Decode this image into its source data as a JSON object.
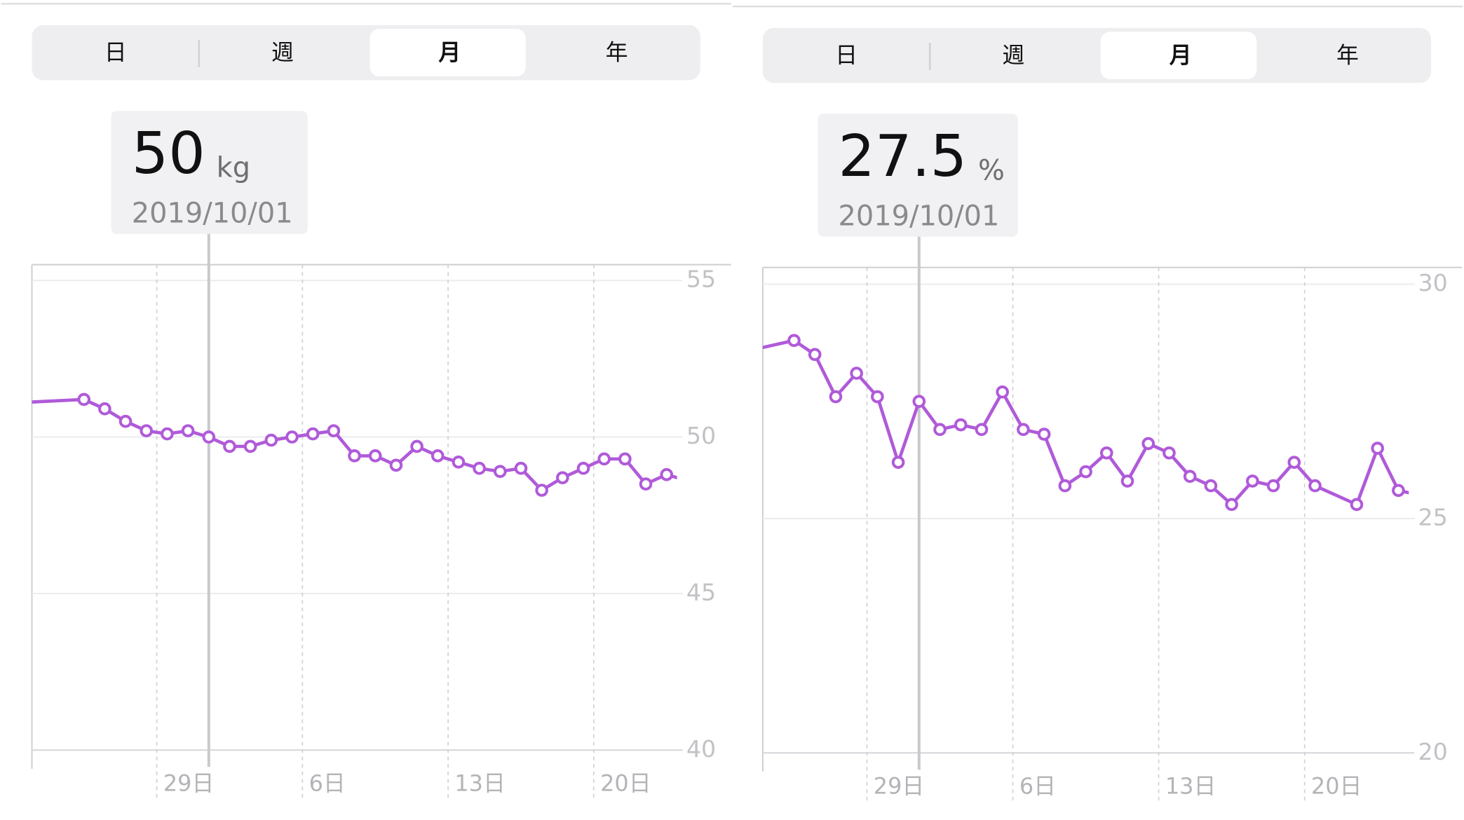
{
  "chart_data": [
    {
      "type": "line",
      "tabs": [
        "日",
        "週",
        "月",
        "年"
      ],
      "selected_tab": "月",
      "tooltip": {
        "value": 50,
        "unit": "kg",
        "date": "2019/10/01"
      },
      "color": "#b05ad9",
      "x": [
        "2019-09-22",
        "2019-09-25",
        "2019-09-26",
        "2019-09-27",
        "2019-09-28",
        "2019-09-29",
        "2019-09-30",
        "2019-10-01",
        "2019-10-02",
        "2019-10-03",
        "2019-10-04",
        "2019-10-05",
        "2019-10-06",
        "2019-10-07",
        "2019-10-08",
        "2019-10-09",
        "2019-10-10",
        "2019-10-11",
        "2019-10-12",
        "2019-10-13",
        "2019-10-14",
        "2019-10-15",
        "2019-10-16",
        "2019-10-17",
        "2019-10-18",
        "2019-10-19",
        "2019-10-20",
        "2019-10-21",
        "2019-10-22",
        "2019-10-23",
        "2019-10-24"
      ],
      "values": [
        51.1,
        51.2,
        50.9,
        50.5,
        50.2,
        50.1,
        50.2,
        50.0,
        49.7,
        49.7,
        49.9,
        50.0,
        50.1,
        50.2,
        49.4,
        49.4,
        49.1,
        49.7,
        49.4,
        49.2,
        49.0,
        48.9,
        49.0,
        48.3,
        48.7,
        49.0,
        49.3,
        49.3,
        48.5,
        48.8,
        48.6
      ],
      "xlim": [
        "2019-09-23",
        "2019-10-24"
      ],
      "xticks": [
        {
          "value": "2019-09-29",
          "label": "29日"
        },
        {
          "value": "2019-10-06",
          "label": "6日"
        },
        {
          "value": "2019-10-13",
          "label": "13日"
        },
        {
          "value": "2019-10-20",
          "label": "20日"
        }
      ],
      "ylim": [
        40,
        55
      ],
      "yticks": [
        40,
        45,
        50,
        55
      ],
      "grid": true
    },
    {
      "type": "line",
      "tabs": [
        "日",
        "週",
        "月",
        "年"
      ],
      "selected_tab": "月",
      "tooltip": {
        "value": 27.5,
        "unit": "%",
        "date": "2019/10/01"
      },
      "color": "#b05ad9",
      "x": [
        "2019-09-23",
        "2019-09-25",
        "2019-09-26",
        "2019-09-27",
        "2019-09-28",
        "2019-09-29",
        "2019-09-30",
        "2019-10-01",
        "2019-10-02",
        "2019-10-03",
        "2019-10-04",
        "2019-10-05",
        "2019-10-06",
        "2019-10-07",
        "2019-10-08",
        "2019-10-09",
        "2019-10-10",
        "2019-10-11",
        "2019-10-12",
        "2019-10-13",
        "2019-10-14",
        "2019-10-15",
        "2019-10-16",
        "2019-10-17",
        "2019-10-18",
        "2019-10-19",
        "2019-10-20",
        "2019-10-22",
        "2019-10-23",
        "2019-10-24",
        "2019-10-25"
      ],
      "values": [
        28.6,
        28.8,
        28.5,
        27.6,
        28.1,
        27.6,
        26.2,
        27.5,
        26.9,
        27.0,
        26.9,
        27.7,
        26.9,
        26.8,
        25.7,
        26.0,
        26.4,
        25.8,
        26.6,
        26.4,
        25.9,
        25.7,
        25.3,
        25.8,
        25.7,
        26.2,
        25.7,
        25.3,
        26.5,
        25.6,
        25.5
      ],
      "xlim": [
        "2019-09-24",
        "2019-10-25"
      ],
      "xticks": [
        {
          "value": "2019-09-29",
          "label": "29日"
        },
        {
          "value": "2019-10-06",
          "label": "6日"
        },
        {
          "value": "2019-10-13",
          "label": "13日"
        },
        {
          "value": "2019-10-20",
          "label": "20日"
        }
      ],
      "ylim": [
        20,
        30
      ],
      "yticks": [
        20,
        25,
        30
      ],
      "grid": true
    }
  ]
}
